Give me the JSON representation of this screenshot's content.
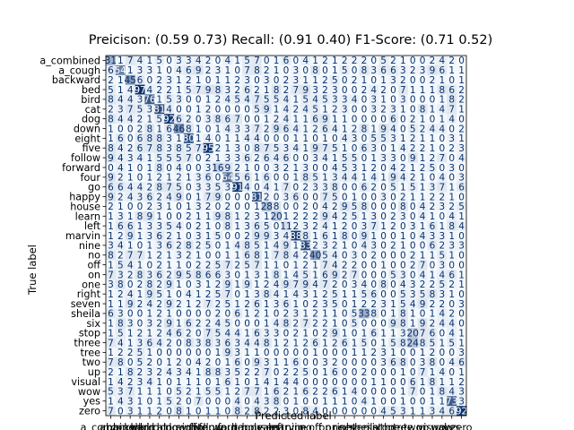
{
  "chart_data": {
    "type": "heatmap",
    "title": "Preicison: (0.59 0.73)   Recall: (0.91 0.40)   F1-Score: (0.71 0.52)",
    "xlabel": "Predicted label",
    "ylabel": "True label",
    "labels": [
      "a_combined",
      "a_cough",
      "backward",
      "bed",
      "bird",
      "cat",
      "dog",
      "down",
      "eight",
      "five",
      "follow",
      "forward",
      "four",
      "go",
      "happy",
      "house",
      "learn",
      "left",
      "marvin",
      "nine",
      "no",
      "off",
      "on",
      "one",
      "right",
      "seven",
      "sheila",
      "six",
      "stop",
      "three",
      "tree",
      "two",
      "up",
      "visual",
      "wow",
      "yes",
      "zero"
    ],
    "cmap": [
      "#f7fbff",
      "#08306b"
    ],
    "matrix": [
      [
        31,
        1,
        7,
        4,
        1,
        5,
        0,
        3,
        3,
        4,
        2,
        0,
        4,
        1,
        5,
        7,
        0,
        1,
        6,
        0,
        4,
        1,
        2,
        1,
        2,
        2,
        2,
        0,
        5,
        2,
        1,
        0,
        0,
        2,
        4,
        2,
        0
      ],
      [
        6,
        54,
        1,
        3,
        3,
        1,
        0,
        4,
        6,
        9,
        2,
        3,
        1,
        0,
        7,
        8,
        2,
        1,
        0,
        3,
        0,
        8,
        0,
        1,
        5,
        0,
        8,
        3,
        6,
        6,
        3,
        2,
        3,
        9,
        6,
        1,
        1
      ],
      [
        2,
        1,
        45,
        6,
        0,
        2,
        3,
        1,
        2,
        1,
        0,
        1,
        1,
        2,
        3,
        0,
        3,
        0,
        2,
        3,
        1,
        1,
        2,
        5,
        0,
        2,
        1,
        0,
        1,
        3,
        2,
        0,
        0,
        2,
        1,
        0,
        1
      ],
      [
        5,
        1,
        4,
        97,
        4,
        2,
        2,
        1,
        5,
        7,
        9,
        8,
        3,
        2,
        6,
        2,
        1,
        8,
        2,
        7,
        9,
        3,
        2,
        3,
        0,
        0,
        2,
        4,
        2,
        0,
        7,
        1,
        1,
        1,
        8,
        6,
        2
      ],
      [
        8,
        4,
        4,
        3,
        76,
        1,
        5,
        3,
        0,
        0,
        1,
        2,
        4,
        5,
        4,
        7,
        5,
        5,
        4,
        1,
        5,
        4,
        5,
        3,
        3,
        4,
        0,
        3,
        1,
        0,
        3,
        0,
        0,
        0,
        1,
        8,
        2
      ],
      [
        2,
        3,
        7,
        5,
        3,
        81,
        4,
        0,
        0,
        1,
        2,
        0,
        0,
        0,
        0,
        5,
        9,
        1,
        4,
        2,
        4,
        5,
        1,
        2,
        3,
        0,
        0,
        3,
        2,
        3,
        1,
        0,
        8,
        1,
        4,
        7,
        1
      ],
      [
        8,
        4,
        4,
        2,
        1,
        5,
        92,
        6,
        2,
        0,
        3,
        8,
        6,
        7,
        0,
        0,
        1,
        2,
        4,
        1,
        1,
        6,
        9,
        1,
        1,
        0,
        0,
        0,
        0,
        6,
        0,
        2,
        1,
        0,
        1,
        4,
        0
      ],
      [
        1,
        0,
        0,
        2,
        8,
        1,
        6,
        46,
        8,
        1,
        0,
        1,
        4,
        3,
        3,
        7,
        2,
        9,
        6,
        4,
        1,
        2,
        6,
        4,
        1,
        2,
        8,
        1,
        9,
        4,
        0,
        5,
        2,
        4,
        4,
        0,
        2
      ],
      [
        1,
        6,
        0,
        6,
        8,
        8,
        3,
        1,
        80,
        1,
        4,
        0,
        1,
        1,
        4,
        4,
        0,
        0,
        0,
        1,
        1,
        0,
        1,
        0,
        4,
        3,
        0,
        5,
        5,
        3,
        1,
        2,
        1,
        1,
        0,
        3,
        1
      ],
      [
        8,
        4,
        2,
        6,
        7,
        8,
        3,
        8,
        5,
        7,
        95,
        2,
        1,
        3,
        0,
        8,
        7,
        5,
        3,
        4,
        1,
        9,
        7,
        5,
        1,
        0,
        6,
        3,
        0,
        1,
        4,
        2,
        2,
        1,
        0,
        2,
        3
      ],
      [
        9,
        4,
        3,
        4,
        1,
        5,
        5,
        5,
        7,
        0,
        2,
        1,
        3,
        3,
        6,
        2,
        6,
        4,
        6,
        0,
        0,
        3,
        4,
        1,
        5,
        5,
        0,
        1,
        3,
        3,
        0,
        9,
        1,
        2,
        7,
        0,
        4
      ],
      [
        0,
        4,
        1,
        0,
        1,
        8,
        0,
        4,
        0,
        0,
        3,
        16,
        9,
        2,
        1,
        0,
        0,
        3,
        2,
        1,
        3,
        0,
        0,
        4,
        5,
        3,
        1,
        2,
        0,
        4,
        2,
        1,
        2,
        5,
        0,
        3,
        0
      ],
      [
        9,
        2,
        1,
        0,
        1,
        2,
        1,
        2,
        1,
        3,
        6,
        0,
        64,
        5,
        6,
        1,
        6,
        0,
        0,
        1,
        8,
        5,
        1,
        3,
        4,
        4,
        1,
        4,
        1,
        9,
        4,
        2,
        1,
        0,
        4,
        0,
        3
      ],
      [
        6,
        6,
        4,
        4,
        2,
        8,
        7,
        5,
        0,
        3,
        3,
        5,
        3,
        91,
        4,
        0,
        4,
        1,
        7,
        0,
        2,
        3,
        3,
        8,
        0,
        0,
        6,
        2,
        0,
        5,
        1,
        5,
        1,
        3,
        7,
        1,
        6
      ],
      [
        9,
        2,
        4,
        3,
        6,
        2,
        4,
        9,
        0,
        1,
        7,
        9,
        0,
        0,
        0,
        81,
        2,
        0,
        3,
        6,
        0,
        0,
        7,
        5,
        0,
        1,
        0,
        0,
        3,
        0,
        2,
        1,
        1,
        2,
        2,
        1,
        0
      ],
      [
        2,
        1,
        0,
        0,
        2,
        3,
        1,
        0,
        1,
        3,
        2,
        0,
        2,
        0,
        0,
        1,
        28,
        8,
        0,
        0,
        2,
        0,
        4,
        2,
        9,
        5,
        8,
        0,
        0,
        0,
        8,
        0,
        4,
        2,
        3,
        2,
        5
      ],
      [
        1,
        3,
        1,
        8,
        9,
        1,
        0,
        0,
        2,
        1,
        1,
        9,
        8,
        1,
        2,
        3,
        1,
        20,
        1,
        2,
        2,
        2,
        9,
        4,
        2,
        5,
        1,
        3,
        0,
        2,
        3,
        0,
        4,
        1,
        0,
        4,
        1
      ],
      [
        1,
        6,
        6,
        1,
        3,
        3,
        5,
        4,
        0,
        2,
        1,
        0,
        8,
        1,
        3,
        6,
        5,
        0,
        11,
        2,
        3,
        2,
        4,
        1,
        2,
        0,
        3,
        7,
        1,
        2,
        0,
        3,
        1,
        6,
        1,
        8,
        4
      ],
      [
        1,
        2,
        9,
        1,
        3,
        6,
        2,
        1,
        0,
        3,
        1,
        5,
        0,
        0,
        2,
        9,
        9,
        3,
        4,
        88,
        8,
        1,
        6,
        1,
        8,
        0,
        9,
        1,
        0,
        0,
        1,
        0,
        4,
        3,
        3,
        1,
        0
      ],
      [
        3,
        4,
        1,
        0,
        1,
        3,
        6,
        2,
        8,
        2,
        5,
        0,
        1,
        4,
        8,
        5,
        1,
        4,
        9,
        1,
        83,
        2,
        3,
        2,
        1,
        0,
        4,
        3,
        0,
        2,
        1,
        0,
        0,
        6,
        2,
        3,
        3
      ],
      [
        8,
        2,
        7,
        7,
        1,
        2,
        1,
        3,
        2,
        1,
        0,
        0,
        1,
        1,
        6,
        8,
        1,
        7,
        8,
        4,
        2,
        40,
        5,
        4,
        0,
        3,
        0,
        2,
        0,
        0,
        0,
        2,
        1,
        1,
        5,
        1,
        0
      ],
      [
        1,
        5,
        4,
        1,
        0,
        2,
        1,
        1,
        0,
        2,
        2,
        5,
        7,
        2,
        5,
        7,
        1,
        1,
        0,
        1,
        2,
        1,
        7,
        4,
        2,
        2,
        0,
        0,
        1,
        0,
        0,
        2,
        7,
        0,
        3,
        0,
        0
      ],
      [
        7,
        3,
        2,
        8,
        3,
        6,
        2,
        9,
        5,
        8,
        6,
        6,
        3,
        0,
        1,
        3,
        1,
        8,
        1,
        4,
        5,
        1,
        6,
        9,
        2,
        7,
        0,
        0,
        0,
        5,
        3,
        0,
        4,
        1,
        4,
        6,
        1
      ],
      [
        3,
        8,
        0,
        2,
        8,
        2,
        9,
        1,
        0,
        3,
        1,
        2,
        9,
        1,
        9,
        1,
        2,
        4,
        9,
        7,
        9,
        4,
        7,
        2,
        0,
        3,
        4,
        0,
        8,
        0,
        4,
        3,
        2,
        2,
        5,
        2,
        1
      ],
      [
        1,
        2,
        4,
        1,
        9,
        5,
        1,
        0,
        4,
        1,
        2,
        5,
        7,
        0,
        1,
        3,
        8,
        4,
        1,
        4,
        3,
        1,
        2,
        5,
        1,
        1,
        5,
        6,
        0,
        0,
        5,
        3,
        5,
        8,
        3,
        1,
        0
      ],
      [
        1,
        1,
        9,
        2,
        4,
        2,
        9,
        2,
        1,
        2,
        7,
        2,
        5,
        1,
        2,
        6,
        1,
        3,
        6,
        1,
        0,
        2,
        3,
        5,
        0,
        1,
        2,
        2,
        3,
        1,
        5,
        4,
        9,
        2,
        2,
        0,
        3
      ],
      [
        6,
        3,
        0,
        0,
        1,
        2,
        1,
        0,
        0,
        0,
        0,
        2,
        0,
        6,
        1,
        2,
        1,
        0,
        2,
        3,
        1,
        2,
        1,
        1,
        0,
        5,
        33,
        8,
        0,
        1,
        8,
        1,
        0,
        1,
        4,
        2,
        0
      ],
      [
        1,
        8,
        3,
        0,
        3,
        2,
        9,
        1,
        6,
        2,
        2,
        4,
        5,
        0,
        0,
        0,
        1,
        4,
        8,
        2,
        7,
        2,
        2,
        1,
        0,
        5,
        0,
        0,
        0,
        9,
        8,
        1,
        9,
        2,
        4,
        4,
        0
      ],
      [
        1,
        5,
        1,
        2,
        1,
        2,
        4,
        6,
        2,
        0,
        7,
        5,
        4,
        4,
        1,
        6,
        3,
        3,
        0,
        2,
        1,
        0,
        2,
        9,
        1,
        0,
        1,
        6,
        1,
        1,
        3,
        20,
        7,
        6,
        0,
        4,
        1
      ],
      [
        7,
        4,
        1,
        3,
        6,
        4,
        2,
        0,
        8,
        3,
        8,
        3,
        6,
        3,
        4,
        4,
        8,
        1,
        2,
        1,
        2,
        6,
        1,
        2,
        6,
        1,
        5,
        0,
        1,
        5,
        8,
        24,
        8,
        5,
        1,
        5,
        1
      ],
      [
        1,
        2,
        2,
        5,
        1,
        0,
        0,
        0,
        0,
        0,
        0,
        1,
        9,
        3,
        1,
        1,
        0,
        0,
        0,
        0,
        0,
        1,
        0,
        0,
        0,
        1,
        1,
        2,
        3,
        1,
        0,
        0,
        1,
        2,
        0,
        0,
        3
      ],
      [
        7,
        8,
        0,
        5,
        2,
        0,
        1,
        2,
        0,
        4,
        2,
        0,
        1,
        6,
        0,
        9,
        3,
        1,
        1,
        6,
        0,
        0,
        3,
        2,
        0,
        0,
        0,
        0,
        3,
        6,
        8,
        0,
        3,
        8,
        0,
        4,
        6
      ],
      [
        2,
        1,
        8,
        2,
        3,
        2,
        4,
        3,
        4,
        1,
        8,
        8,
        3,
        5,
        2,
        2,
        7,
        0,
        2,
        2,
        5,
        0,
        1,
        6,
        0,
        0,
        2,
        0,
        0,
        0,
        1,
        0,
        7,
        1,
        4,
        0,
        1
      ],
      [
        1,
        4,
        2,
        3,
        4,
        1,
        0,
        1,
        1,
        1,
        0,
        1,
        6,
        1,
        0,
        1,
        4,
        1,
        4,
        4,
        0,
        0,
        0,
        0,
        0,
        0,
        0,
        1,
        1,
        0,
        0,
        6,
        1,
        8,
        1,
        1,
        2
      ],
      [
        5,
        3,
        7,
        1,
        1,
        1,
        0,
        5,
        2,
        1,
        5,
        5,
        1,
        2,
        7,
        7,
        1,
        6,
        2,
        1,
        6,
        2,
        2,
        6,
        1,
        4,
        0,
        0,
        0,
        0,
        1,
        7,
        0,
        1,
        8,
        4,
        3
      ],
      [
        1,
        4,
        3,
        1,
        0,
        1,
        5,
        2,
        0,
        7,
        0,
        0,
        0,
        4,
        0,
        4,
        3,
        8,
        0,
        1,
        0,
        0,
        1,
        1,
        1,
        0,
        4,
        1,
        0,
        0,
        1,
        0,
        0,
        1,
        1,
        73,
        3
      ],
      [
        7,
        0,
        3,
        1,
        1,
        2,
        0,
        8,
        1,
        0,
        1,
        1,
        0,
        8,
        2,
        8,
        2,
        2,
        3,
        0,
        8,
        4,
        0,
        0,
        0,
        0,
        0,
        0,
        4,
        5,
        3,
        1,
        1,
        3,
        4,
        6,
        92
      ]
    ]
  }
}
